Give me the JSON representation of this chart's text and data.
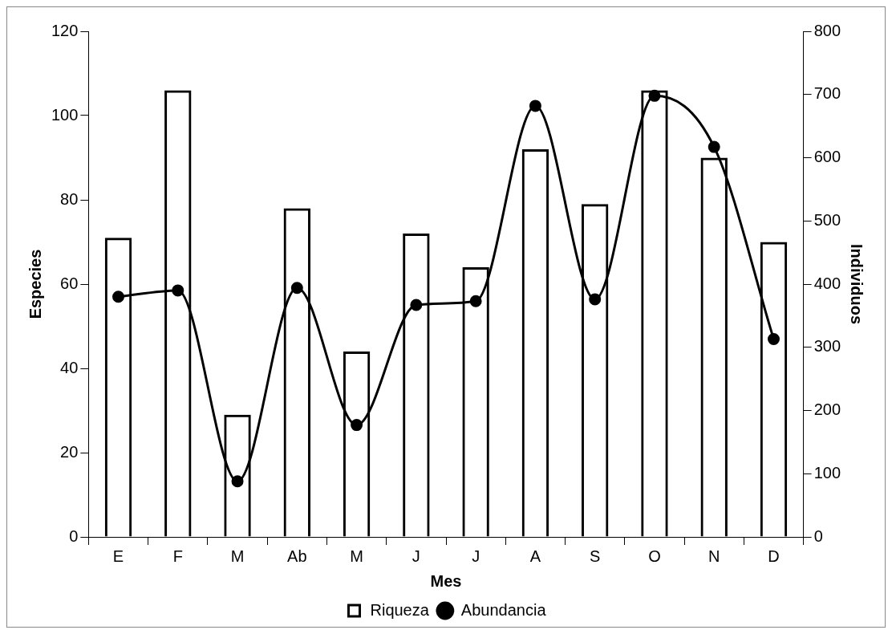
{
  "chart_data": {
    "type": "bar",
    "xlabel": "Mes",
    "ylabel": "Especies",
    "y2label": "Individuos",
    "categories": [
      "E",
      "F",
      "M",
      "Ab",
      "M",
      "J",
      "J",
      "A",
      "S",
      "O",
      "N",
      "D"
    ],
    "series": [
      {
        "name": "Riqueza",
        "color": "#000000",
        "values": [
          71,
          106,
          29,
          78,
          44,
          72,
          64,
          92,
          79,
          106,
          90,
          70
        ]
      },
      {
        "name": "Abundancia",
        "type": "line",
        "axis": "y2",
        "color": "#000000",
        "marker": "circle",
        "values": [
          380,
          390,
          88,
          394,
          177,
          367,
          373,
          682,
          376,
          698,
          617,
          313
        ]
      }
    ],
    "ylim": [
      0,
      120
    ],
    "yticks": [
      0,
      20,
      40,
      60,
      80,
      100,
      120
    ],
    "y2lim": [
      0,
      800
    ],
    "y2ticks": [
      0,
      100,
      200,
      300,
      400,
      500,
      600,
      700,
      800
    ],
    "legend": "bottom"
  }
}
